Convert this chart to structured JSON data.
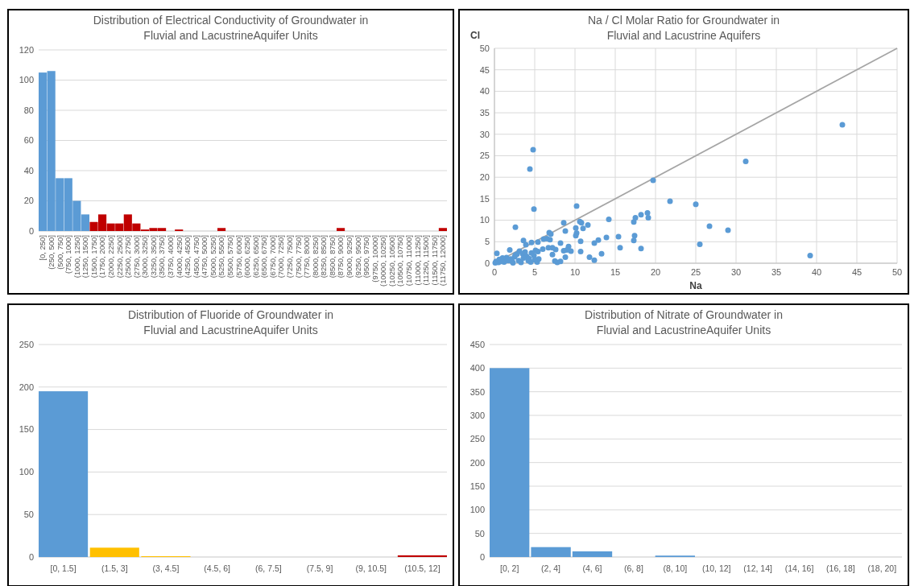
{
  "chart_data": [
    {
      "type": "bar",
      "title": "Distribution of Electrical Conductivity of Groundwater in\nFluvial and LacustrineAquifer Units",
      "categories": [
        "[0, 250]",
        "(250, 500]",
        "(500, 750]",
        "(750, 1000]",
        "(1000, 1250]",
        "(1250, 1500]",
        "(1500, 1750]",
        "(1750, 2000]",
        "(2000, 2250]",
        "(2250, 2500]",
        "(2500, 2750]",
        "(2750, 3000]",
        "(3000, 3250]",
        "(3250, 3500]",
        "(3500, 3750]",
        "(3750, 4000]",
        "(4000, 4250]",
        "(4250, 4500]",
        "(4500, 4750]",
        "(4750, 5000]",
        "(5000, 5250]",
        "(5250, 5500]",
        "(5500, 5750]",
        "(5750, 6000]",
        "(6000, 6250]",
        "(6250, 6500]",
        "(6500, 6750]",
        "(6750, 7000]",
        "(7000, 7250]",
        "(7250, 7500]",
        "(7500, 7750]",
        "(7750, 8000]",
        "(8000, 8250]",
        "(8250, 8500]",
        "(8500, 8750]",
        "(8750, 9000]",
        "(9000, 9250]",
        "(9250, 9500]",
        "(9500, 9750]",
        "(9750, 10000]",
        "(10000, 10250]",
        "(10250, 10500]",
        "(10500, 10750]",
        "(10750, 11000]",
        "(11000, 11250]",
        "(11250, 11500]",
        "(11500, 11750]",
        "(11750, 12000]"
      ],
      "values": [
        105,
        106,
        35,
        35,
        20,
        11,
        6,
        11,
        5,
        5,
        11,
        5,
        1,
        2,
        2,
        0,
        1,
        0,
        0,
        0,
        0,
        2,
        0,
        0,
        0,
        0,
        0,
        0,
        0,
        0,
        0,
        0,
        0,
        0,
        0,
        2,
        0,
        0,
        0,
        0,
        0,
        0,
        0,
        0,
        0,
        0,
        0,
        2
      ],
      "colors": [
        "#5b9bd5",
        "#5b9bd5",
        "#5b9bd5",
        "#5b9bd5",
        "#5b9bd5",
        "#5b9bd5",
        "#c00000",
        "#c00000",
        "#c00000",
        "#c00000",
        "#c00000",
        "#c00000",
        "#c00000",
        "#c00000",
        "#c00000",
        "#c00000",
        "#c00000",
        "#c00000",
        "#c00000",
        "#c00000",
        "#c00000",
        "#c00000",
        "#c00000",
        "#c00000",
        "#c00000",
        "#c00000",
        "#c00000",
        "#c00000",
        "#c00000",
        "#c00000",
        "#c00000",
        "#c00000",
        "#c00000",
        "#c00000",
        "#c00000",
        "#c00000",
        "#c00000",
        "#c00000",
        "#c00000",
        "#c00000",
        "#c00000",
        "#c00000",
        "#c00000",
        "#c00000",
        "#c00000",
        "#c00000",
        "#c00000",
        "#c00000"
      ],
      "ylim": [
        0,
        120
      ],
      "yticks": [
        0,
        20,
        40,
        60,
        80,
        100,
        120
      ],
      "grid": "y"
    },
    {
      "type": "scatter",
      "title": "Na / Cl Molar Ratio for Groundwater in\nFluvial and Lacustrine Aquifers",
      "xlabel": "Na",
      "ylabel": "Cl",
      "xlim": [
        0,
        50
      ],
      "xticks": [
        0,
        5,
        10,
        15,
        20,
        25,
        30,
        35,
        40,
        45,
        50
      ],
      "ylim": [
        0,
        50
      ],
      "yticks": [
        0,
        5,
        10,
        15,
        20,
        25,
        30,
        35,
        40,
        45,
        50
      ],
      "grid": true,
      "marker": "circle",
      "series": [
        {
          "type": "line",
          "color": "#a5a5a5",
          "marker": "none",
          "x": [
            0,
            50
          ],
          "values": [
            0,
            50
          ]
        },
        {
          "type": "scatter",
          "color": "#5b9bd5",
          "x": [
            43.2,
            31.2,
            39.2,
            29,
            26.7,
            25.5,
            25,
            21.8,
            19.7,
            19.0,
            19.1,
            18.2,
            17.5,
            17.3,
            17.4,
            17.3,
            18.2,
            15.6,
            15.4,
            14.2,
            13.9,
            13.3,
            12.9,
            12.4,
            12.4,
            11.8,
            11.6,
            11,
            10.8,
            10.6,
            10.2,
            10.1,
            10.2,
            10.1,
            10.7,
            10.7,
            9.5,
            9.2,
            9.0,
            8.8,
            8.6,
            8.8,
            8.6,
            8.2,
            8.2,
            7.8,
            7.5,
            7.6,
            7.2,
            7.2,
            6.7,
            7.0,
            6.8,
            6.5,
            6.1,
            6.0,
            5.4,
            4.8,
            4.4,
            4.9,
            2.6,
            3.6,
            4.6,
            3.9,
            5.1,
            5.4,
            4.6,
            5.5,
            5.3,
            4.2,
            1.9,
            0.3,
            3.1,
            3.5,
            2.5,
            2.0,
            1.5,
            1.0,
            0.6,
            0.2,
            0.5,
            1.2,
            2.2,
            3.0,
            3.3,
            4.0,
            4.5,
            5.0,
            3.8,
            2.8,
            2.3,
            1.7,
            0.9,
            2.6,
            3.6,
            4.3,
            4.9,
            0.1,
            6.9
          ],
          "values": [
            32.2,
            23.7,
            1.8,
            7.7,
            8.6,
            4.4,
            13.7,
            14.4,
            19.3,
            11.7,
            10.6,
            11.3,
            10.6,
            9.6,
            6.4,
            5.3,
            3.4,
            3.6,
            6.2,
            10.2,
            6.0,
            2.2,
            5.4,
            4.7,
            0.7,
            1.4,
            8.9,
            8.1,
            9.4,
            9.7,
            13.3,
            8.2,
            7.0,
            6.4,
            5.1,
            2.7,
            2.8,
            3.9,
            3.1,
            7.5,
            9.4,
            1.4,
            2.9,
            4.7,
            0.4,
            0.2,
            0.5,
            3.2,
            3.6,
            2.0,
            3.6,
            6.8,
            7.1,
            5.7,
            5.6,
            3.3,
            4.9,
            26.4,
            21.9,
            12.6,
            8.4,
            5.3,
            4.8,
            4.3,
            3.0,
            2.7,
            2.4,
            1.0,
            0.3,
            0.6,
            3.1,
            2.3,
            2.8,
            2.2,
            1.5,
            1.0,
            1.3,
            1.2,
            0.9,
            0.4,
            0.2,
            0.3,
            0.4,
            0.6,
            0.2,
            1.6,
            0.3,
            0.8,
            2.6,
            2.1,
            0.1,
            0.6,
            0.4,
            1.9,
            1.2,
            1.1,
            1.8,
            0.1,
            5.5
          ]
        }
      ]
    },
    {
      "type": "bar",
      "title": "Distribution of Fluoride of Groundwater in\nFluvial and LacustrineAquifer Units",
      "categories": [
        "[0, 1.5]",
        "(1.5, 3]",
        "(3, 4.5]",
        "(4.5, 6]",
        "(6, 7.5]",
        "(7.5, 9]",
        "(9, 10.5]",
        "(10.5, 12]"
      ],
      "values": [
        195,
        11,
        1,
        0,
        0,
        0,
        0,
        2
      ],
      "colors": [
        "#5b9bd5",
        "#ffc000",
        "#ffc000",
        "#ffc000",
        "#ffc000",
        "#ffc000",
        "#ffc000",
        "#c00000"
      ],
      "ylim": [
        0,
        250
      ],
      "yticks": [
        0,
        50,
        100,
        150,
        200,
        250
      ],
      "grid": "y"
    },
    {
      "type": "bar",
      "title": "Distribution of Nitrate of Groundwater in\nFluvial and LacustrineAquifer Units",
      "categories": [
        "[0, 2]",
        "(2, 4]",
        "(4, 6]",
        "(6, 8]",
        "(8, 10]",
        "(10, 12]",
        "(12, 14]",
        "(14, 16]",
        "(16, 18]",
        "(18, 20]"
      ],
      "values": [
        400,
        21,
        12,
        0,
        3,
        0,
        0,
        0,
        0,
        0
      ],
      "color": "#5b9bd5",
      "ylim": [
        0,
        450
      ],
      "yticks": [
        0,
        50,
        100,
        150,
        200,
        250,
        300,
        350,
        400,
        450
      ],
      "grid": "y"
    }
  ]
}
